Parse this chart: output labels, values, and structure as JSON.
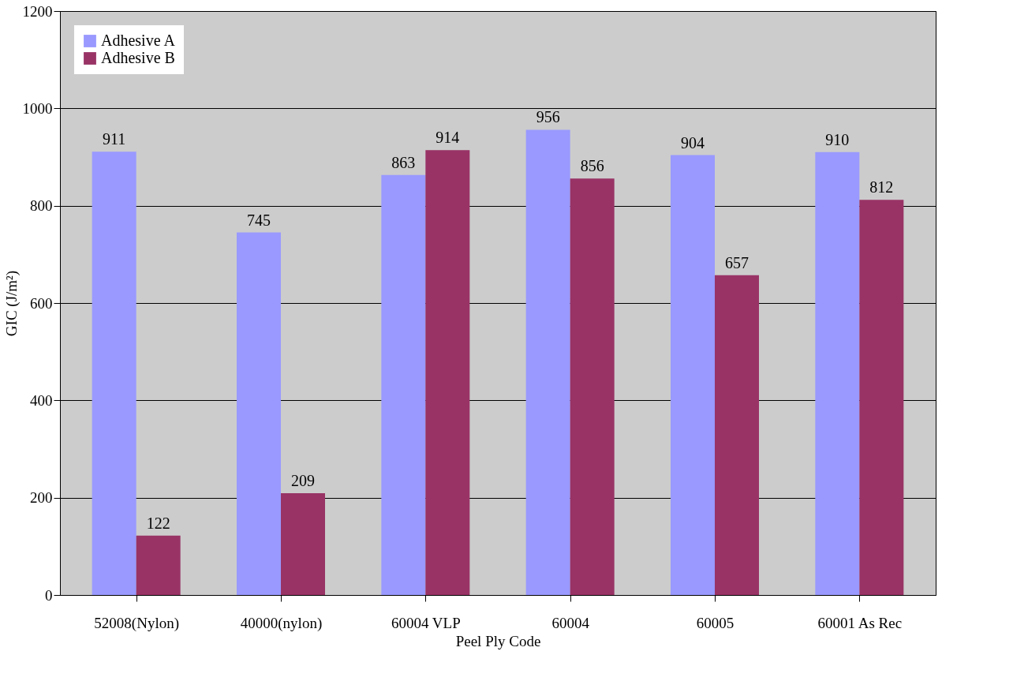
{
  "chart_data": {
    "type": "bar",
    "xlabel": "Peel Ply Code",
    "ylabel": "GIC (J/m²)",
    "categories": [
      "52008(Nylon)",
      "40000(nylon)",
      "60004 VLP",
      "60004",
      "60005",
      "60001 As Rec"
    ],
    "series": [
      {
        "name": "Adhesive A",
        "color": "#9999ff",
        "values": [
          911,
          745,
          863,
          956,
          904,
          910
        ]
      },
      {
        "name": "Adhesive B",
        "color": "#993366",
        "values": [
          122,
          209,
          914,
          856,
          657,
          812
        ]
      }
    ],
    "ylim": [
      0,
      1200
    ],
    "yticks": [
      0,
      200,
      400,
      600,
      800,
      1000,
      1200
    ],
    "grid": "y",
    "legend": "top left",
    "data_labels": true
  }
}
